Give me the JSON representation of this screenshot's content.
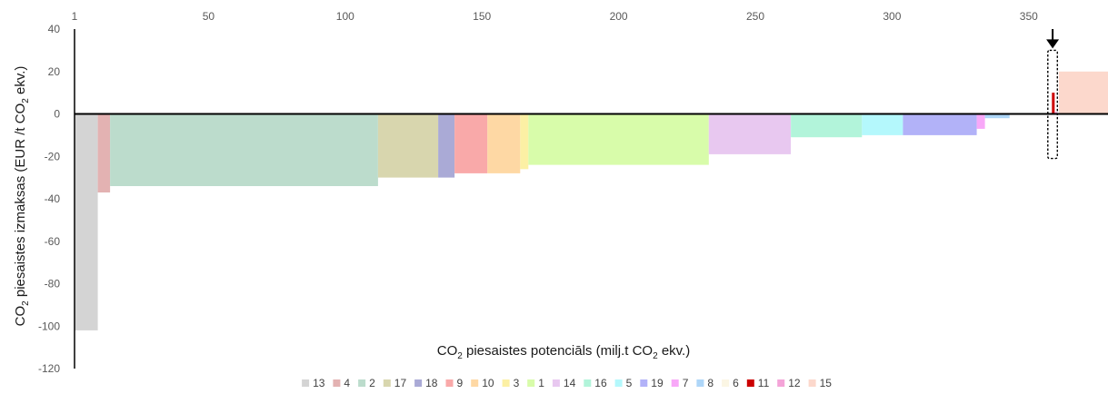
{
  "chart_data": {
    "type": "bar",
    "subtype": "variable-width cost curve",
    "xlabel": {
      "pre": "CO",
      "sub1": "2",
      "mid": " piesaistes potenciāls (milj.t CO",
      "sub2": "2",
      "post": " ekv.)"
    },
    "ylabel": {
      "pre": "CO",
      "sub1": "2",
      "mid": " piesaistes izmaksas (EUR /t CO",
      "sub2": "2",
      "post": " ekv.)"
    },
    "x_axis_position": "top",
    "x_ticks": [
      1,
      50,
      100,
      150,
      200,
      250,
      300,
      350
    ],
    "x_tick_labels": [
      "1",
      "50",
      "100",
      "150",
      "200",
      "250",
      "300",
      "350"
    ],
    "xlim": [
      1,
      379
    ],
    "y_ticks": [
      40,
      20,
      0,
      -20,
      -40,
      -60,
      -80,
      -100,
      -120
    ],
    "y_tick_labels": [
      "40",
      "20",
      "0",
      "-20",
      "-40",
      "-60",
      "-80",
      "-100",
      "-120"
    ],
    "ylim": [
      -120,
      40
    ],
    "grid": false,
    "legend_position": "bottom",
    "series": [
      {
        "name": "13",
        "x_start": 1,
        "x_end": 9.5,
        "value": -102,
        "color": "#d4d4d4"
      },
      {
        "name": "4",
        "x_start": 9.5,
        "x_end": 14,
        "value": -37,
        "color": "#e3b2b2"
      },
      {
        "name": "2",
        "x_start": 14,
        "x_end": 112,
        "value": -34,
        "color": "#bcdccc"
      },
      {
        "name": "17",
        "x_start": 112,
        "x_end": 134,
        "value": -30,
        "color": "#d8d6ae"
      },
      {
        "name": "18",
        "x_start": 134,
        "x_end": 140,
        "value": -30,
        "color": "#aaaad6"
      },
      {
        "name": "9",
        "x_start": 140,
        "x_end": 152,
        "value": -28,
        "color": "#f9a9a9"
      },
      {
        "name": "10",
        "x_start": 152,
        "x_end": 164,
        "value": -28,
        "color": "#fed8a4"
      },
      {
        "name": "3",
        "x_start": 164,
        "x_end": 167,
        "value": -26,
        "color": "#fcf0a4"
      },
      {
        "name": "1",
        "x_start": 167,
        "x_end": 233,
        "value": -24,
        "color": "#d8fcaa"
      },
      {
        "name": "14",
        "x_start": 233,
        "x_end": 263,
        "value": -19,
        "color": "#e8c8f0"
      },
      {
        "name": "16",
        "x_start": 263,
        "x_end": 289,
        "value": -11,
        "color": "#b2f4da"
      },
      {
        "name": "5",
        "x_start": 289,
        "x_end": 304,
        "value": -10,
        "color": "#b4f8fc"
      },
      {
        "name": "19",
        "x_start": 304,
        "x_end": 331,
        "value": -10,
        "color": "#b2b2f8"
      },
      {
        "name": "7",
        "x_start": 331,
        "x_end": 334,
        "value": -7,
        "color": "#f8a8f8"
      },
      {
        "name": "8",
        "x_start": 334,
        "x_end": 343,
        "value": -2,
        "color": "#aed6f8"
      },
      {
        "name": "6",
        "x_start": 343,
        "x_end": 358.5,
        "value": 0.3,
        "color": "#fbf6e4"
      },
      {
        "name": "11",
        "x_start": 358.5,
        "x_end": 359.5,
        "value": 10,
        "color": "#cc0000"
      },
      {
        "name": "12",
        "x_start": 359.5,
        "x_end": 360.5,
        "value": 1,
        "color": "#f4a4d8"
      },
      {
        "name": "15",
        "x_start": 361,
        "x_end": 379,
        "value": 20,
        "color": "#fcd8cc"
      }
    ],
    "annotations": [
      {
        "kind": "dashed-box-with-arrow",
        "x_start": 357,
        "x_end": 360.5,
        "y_top": 30,
        "y_bottom": -21
      }
    ]
  }
}
